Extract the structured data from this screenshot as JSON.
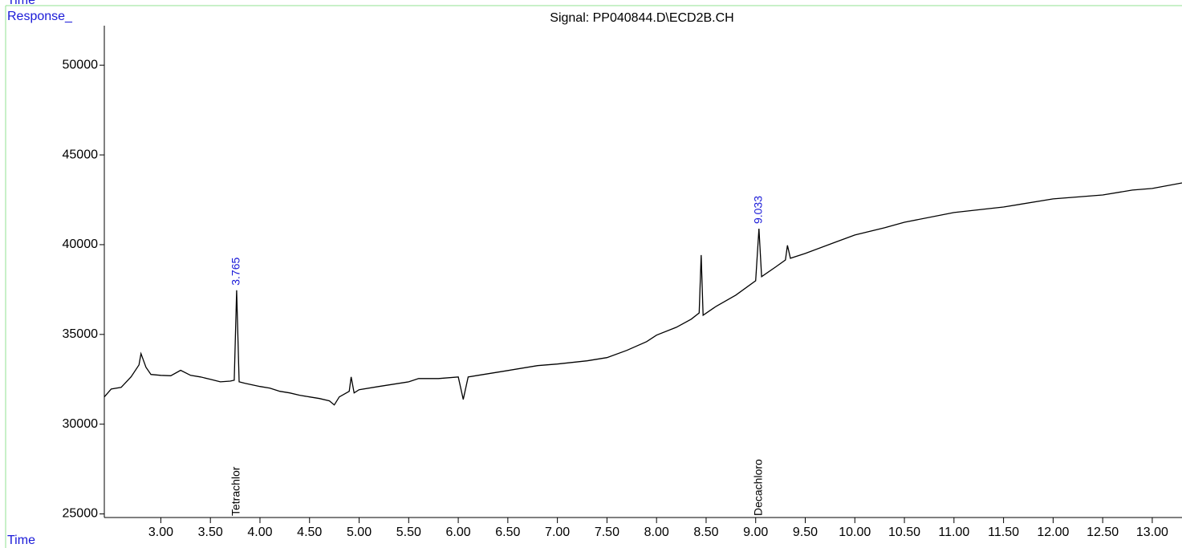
{
  "chart_data": {
    "type": "line",
    "title": "Signal: PP040844.D\\ECD2B.CH",
    "ylabel": "Response_",
    "xlabel": "Time",
    "top_label": "Time",
    "color": "#000000",
    "x": [
      2.43,
      2.5,
      2.6,
      2.7,
      2.78,
      2.8,
      2.85,
      2.9,
      3.0,
      3.1,
      3.2,
      3.3,
      3.4,
      3.5,
      3.6,
      3.7,
      3.74,
      3.765,
      3.79,
      3.85,
      4.0,
      4.1,
      4.2,
      4.3,
      4.4,
      4.5,
      4.6,
      4.7,
      4.75,
      4.8,
      4.9,
      4.92,
      4.95,
      5.0,
      5.2,
      5.5,
      5.6,
      5.8,
      6.0,
      6.05,
      6.1,
      6.2,
      6.5,
      6.8,
      7.0,
      7.3,
      7.5,
      7.7,
      7.9,
      8.0,
      8.2,
      8.35,
      8.43,
      8.45,
      8.47,
      8.6,
      8.8,
      9.0,
      9.033,
      9.06,
      9.2,
      9.3,
      9.32,
      9.35,
      9.5,
      9.8,
      10.0,
      10.3,
      10.5,
      11.0,
      11.5,
      12.0,
      12.5,
      12.8,
      13.0,
      13.3
    ],
    "values": [
      31520,
      31960,
      32050,
      32640,
      33300,
      33930,
      33170,
      32770,
      32720,
      32700,
      33000,
      32720,
      32630,
      32500,
      32360,
      32400,
      32450,
      37460,
      32360,
      32280,
      32100,
      32010,
      31830,
      31740,
      31610,
      31520,
      31430,
      31300,
      31070,
      31520,
      31830,
      32630,
      31740,
      31920,
      32100,
      32360,
      32540,
      32540,
      32630,
      31380,
      32630,
      32720,
      32990,
      33260,
      33350,
      33530,
      33710,
      34110,
      34600,
      34960,
      35400,
      35850,
      36200,
      39420,
      36070,
      36560,
      37190,
      37990,
      40890,
      38220,
      38750,
      39150,
      39960,
      39240,
      39510,
      40130,
      40540,
      40940,
      41250,
      41790,
      42100,
      42550,
      42770,
      43040,
      43130,
      43440
    ],
    "annotations": [
      {
        "rt": 3.765,
        "compound": "Tetrachlor"
      },
      {
        "rt": 9.033,
        "compound": "Decachloro"
      }
    ],
    "xlim": [
      2.43,
      13.3
    ],
    "ylim": [
      24800,
      52200
    ],
    "xticks": [
      {
        "value": 3,
        "label": "3.00"
      },
      {
        "value": 3.5,
        "label": "3.50"
      },
      {
        "value": 4,
        "label": "4.00"
      },
      {
        "value": 4.5,
        "label": "4.50"
      },
      {
        "value": 5,
        "label": "5.00"
      },
      {
        "value": 5.5,
        "label": "5.50"
      },
      {
        "value": 6,
        "label": "6.00"
      },
      {
        "value": 6.5,
        "label": "6.50"
      },
      {
        "value": 7,
        "label": "7.00"
      },
      {
        "value": 7.5,
        "label": "7.50"
      },
      {
        "value": 8,
        "label": "8.00"
      },
      {
        "value": 8.5,
        "label": "8.50"
      },
      {
        "value": 9,
        "label": "9.00"
      },
      {
        "value": 9.5,
        "label": "9.50"
      },
      {
        "value": 10,
        "label": "10.00"
      },
      {
        "value": 10.5,
        "label": "10.50"
      },
      {
        "value": 11,
        "label": "11.00"
      },
      {
        "value": 11.5,
        "label": "11.50"
      },
      {
        "value": 12,
        "label": "12.00"
      },
      {
        "value": 12.5,
        "label": "12.50"
      },
      {
        "value": 13,
        "label": "13.00"
      }
    ],
    "yticks": [
      25000,
      30000,
      35000,
      40000,
      45000,
      50000
    ]
  }
}
